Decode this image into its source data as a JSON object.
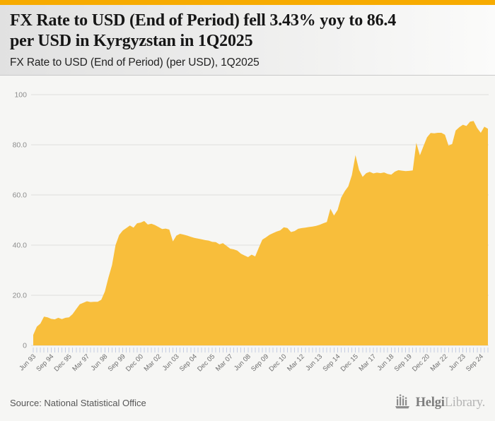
{
  "accent_color": "#F7AB00",
  "header": {
    "title": {
      "line1": "FX Rate to USD (End of Period) fell 3.43% yoy to 86.4",
      "line2": "per USD in Kyrgyzstan in 1Q2025"
    },
    "subtitle": "FX Rate to USD (End of Period) (per USD), 1Q2025"
  },
  "chart_data": {
    "type": "area",
    "title": "FX Rate to USD (End of Period) (per USD), 1Q2025",
    "country": "Kyrgyzstan",
    "unit": "per USD",
    "frequency": "quarterly",
    "end_period": "1Q2025",
    "end_value": 86.4,
    "yoy_change_pct": -3.43,
    "area_color": "#F8BE3B",
    "grid": true,
    "ylim": [
      0,
      100
    ],
    "y_tick_labels": [
      "0",
      "20.0",
      "40.0",
      "60.0",
      "80.0",
      "100"
    ],
    "x_tick_every": 5,
    "x_tick_labels": [
      "Jun 93",
      "Sep 94",
      "Dec 95",
      "Mar 97",
      "Jun 98",
      "Sep 99",
      "Dec 00",
      "Mar 02",
      "Jun 03",
      "Sep 04",
      "Dec 05",
      "Mar 07",
      "Jun 08",
      "Sep 09",
      "Dec 10",
      "Mar 12",
      "Jun 13",
      "Sep 14",
      "Dec 15",
      "Mar 17",
      "Jun 18",
      "Sep 19",
      "Dec 20",
      "Mar 22",
      "Jun 23",
      "Sep 24"
    ],
    "values": [
      4.2,
      7.5,
      8.7,
      11.5,
      11.2,
      10.6,
      10.4,
      11.0,
      10.5,
      11.0,
      11.2,
      12.5,
      14.5,
      16.4,
      17.0,
      17.6,
      17.3,
      17.4,
      17.4,
      18.2,
      21.5,
      27.0,
      32.0,
      40.0,
      44.0,
      45.8,
      46.8,
      47.8,
      47.0,
      48.7,
      49.0,
      49.6,
      48.2,
      48.5,
      48.0,
      47.2,
      46.4,
      46.6,
      46.2,
      41.5,
      43.8,
      44.5,
      44.2,
      43.8,
      43.3,
      42.9,
      42.6,
      42.3,
      42.0,
      41.8,
      41.3,
      41.2,
      40.3,
      40.8,
      39.7,
      38.6,
      38.3,
      37.8,
      36.6,
      35.9,
      35.2,
      36.2,
      35.5,
      39.0,
      42.2,
      43.1,
      44.1,
      44.8,
      45.4,
      45.9,
      47.1,
      46.8,
      45.2,
      45.6,
      46.5,
      46.8,
      47.0,
      47.2,
      47.4,
      47.7,
      48.1,
      48.7,
      49.2,
      54.5,
      51.8,
      54.0,
      58.9,
      61.5,
      63.4,
      67.9,
      75.9,
      70.0,
      67.2,
      68.7,
      69.2,
      68.6,
      68.9,
      68.7,
      69.0,
      68.4,
      68.1,
      69.3,
      69.9,
      69.7,
      69.5,
      69.6,
      69.8,
      80.8,
      75.8,
      79.5,
      83.0,
      84.7,
      84.6,
      84.8,
      84.8,
      84.0,
      79.7,
      80.3,
      85.7,
      87.0,
      88.0,
      87.5,
      89.2,
      89.5,
      86.7,
      84.8,
      87.2,
      86.4
    ]
  },
  "footer": {
    "source": "Source: National Statistical Office",
    "logo": {
      "brand_primary": "Helgi",
      "brand_secondary": "Library."
    }
  }
}
